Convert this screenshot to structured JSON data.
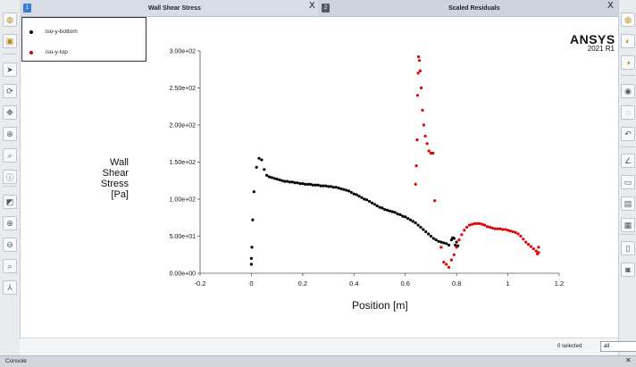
{
  "tabs": [
    {
      "label": "Wall Shear Stress",
      "badge": "1",
      "badge_color": "#3a7bd5",
      "active": true
    },
    {
      "label": "Scaled Residuals",
      "badge": "2",
      "badge_color": "#555b63",
      "active": false
    }
  ],
  "close_glyph": "X",
  "brand": {
    "name": "ANSYS",
    "version": "2021 R1"
  },
  "legend": [
    {
      "label": "iso-y-bottom",
      "color": "#000000"
    },
    {
      "label": "iso-y-top",
      "color": "#e00000"
    }
  ],
  "axis": {
    "ylabel_lines": [
      "Wall",
      "Shear",
      "Stress",
      "[Pa]"
    ],
    "xlabel": "Position [m]"
  },
  "selection": {
    "count_text": "0 selected",
    "filter_value": "all"
  },
  "console": {
    "label": "Console"
  },
  "left_toolbar_icons": [
    "mesh-display-icon",
    "surface-icon",
    "pointer-icon",
    "rotate-icon",
    "pan-icon",
    "zoom-icon",
    "zoom-box-icon",
    "info-icon",
    "fit-icon",
    "zoom-in-icon",
    "zoom-out-icon",
    "zoom-region-icon",
    "axes-icon"
  ],
  "right_toolbar_icons": [
    "mesh-icon",
    "contour-icon",
    "contour-fill-icon",
    "visibility-icon",
    "hide-icon",
    "undo-view-icon",
    "plot-icon",
    "slider-icon",
    "report-icon",
    "toolbar-options-icon",
    "window-icon",
    "camera-icon"
  ],
  "chart_data": {
    "type": "scatter",
    "xlabel": "Position [m]",
    "ylabel": "Wall Shear Stress [Pa]",
    "xlim": [
      -0.2,
      1.2
    ],
    "ylim": [
      0,
      300
    ],
    "xticks": [
      -0.2,
      0,
      0.2,
      0.4,
      0.6,
      0.8,
      1,
      1.2
    ],
    "xtick_labels": [
      "-0.2",
      "0",
      "0.2",
      "0.4",
      "0.6",
      "0.8",
      "1",
      "1.2"
    ],
    "yticks": [
      0,
      50,
      100,
      150,
      200,
      250,
      300
    ],
    "ytick_labels": [
      "0.00e+00",
      "5.00e+01",
      "1.00e+02",
      "1.50e+02",
      "2.00e+02",
      "2.50e+02",
      "3.00e+02"
    ],
    "grid": false,
    "legend_position": "top-left",
    "series": [
      {
        "name": "iso-y-bottom",
        "color": "#000000",
        "x": [
          0.0,
          0.0,
          0.002,
          0.005,
          0.01,
          0.02,
          0.03,
          0.04,
          0.05,
          0.06,
          0.07,
          0.08,
          0.09,
          0.1,
          0.11,
          0.12,
          0.13,
          0.14,
          0.15,
          0.16,
          0.17,
          0.18,
          0.19,
          0.2,
          0.21,
          0.22,
          0.23,
          0.24,
          0.25,
          0.26,
          0.27,
          0.28,
          0.29,
          0.3,
          0.31,
          0.32,
          0.33,
          0.34,
          0.35,
          0.36,
          0.37,
          0.38,
          0.39,
          0.4,
          0.41,
          0.42,
          0.43,
          0.44,
          0.45,
          0.46,
          0.47,
          0.48,
          0.49,
          0.5,
          0.51,
          0.52,
          0.53,
          0.54,
          0.55,
          0.56,
          0.57,
          0.58,
          0.59,
          0.6,
          0.61,
          0.62,
          0.63,
          0.64,
          0.65,
          0.66,
          0.67,
          0.68,
          0.69,
          0.7,
          0.71,
          0.72,
          0.73,
          0.74,
          0.75,
          0.76,
          0.77,
          0.78,
          0.785,
          0.79,
          0.795,
          0.8,
          0.805
        ],
        "y": [
          12,
          20,
          35,
          72,
          110,
          143,
          155,
          153,
          140,
          132,
          130,
          129,
          128,
          127,
          126,
          125,
          124,
          124,
          123,
          123,
          122,
          122,
          121,
          121,
          120,
          120,
          120,
          119,
          119,
          119,
          118,
          118,
          118,
          117,
          117,
          116,
          116,
          115,
          114,
          113,
          112,
          111,
          109,
          107,
          106,
          104,
          102,
          100,
          99,
          97,
          95,
          93,
          91,
          89,
          88,
          86,
          85,
          84,
          83,
          82,
          80,
          79,
          77,
          76,
          74,
          72,
          70,
          68,
          65,
          62,
          59,
          56,
          53,
          50,
          47,
          45,
          43,
          42,
          41,
          40,
          38,
          45,
          48,
          47,
          38,
          42,
          37
        ]
      },
      {
        "name": "iso-y-top",
        "color": "#e00000",
        "x": [
          0.64,
          0.643,
          0.646,
          0.648,
          0.65,
          0.652,
          0.655,
          0.658,
          0.662,
          0.667,
          0.672,
          0.678,
          0.685,
          0.692,
          0.7,
          0.708,
          0.715,
          0.74,
          0.75,
          0.76,
          0.77,
          0.78,
          0.79,
          0.8,
          0.81,
          0.82,
          0.83,
          0.84,
          0.85,
          0.86,
          0.87,
          0.88,
          0.89,
          0.9,
          0.91,
          0.92,
          0.93,
          0.94,
          0.95,
          0.96,
          0.97,
          0.98,
          0.99,
          1.0,
          1.01,
          1.02,
          1.03,
          1.04,
          1.05,
          1.06,
          1.07,
          1.08,
          1.09,
          1.1,
          1.11,
          1.115,
          1.12,
          1.12
        ],
        "y": [
          120,
          145,
          180,
          240,
          270,
          292,
          287,
          273,
          250,
          220,
          200,
          185,
          175,
          165,
          162,
          162,
          98,
          35,
          15,
          12,
          8,
          18,
          25,
          35,
          45,
          52,
          58,
          62,
          65,
          66,
          67,
          67,
          67,
          66,
          65,
          63,
          62,
          61,
          60,
          60,
          60,
          59,
          59,
          58,
          57,
          56,
          55,
          53,
          50,
          46,
          42,
          39,
          36,
          33,
          30,
          26,
          35,
          28
        ]
      }
    ]
  }
}
